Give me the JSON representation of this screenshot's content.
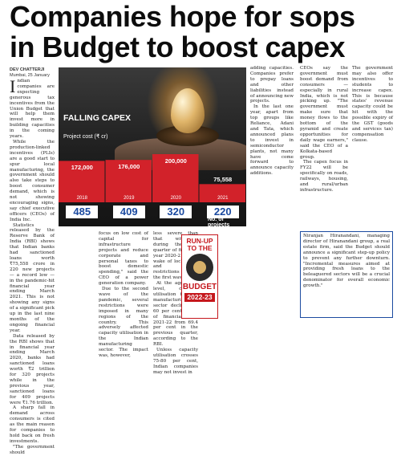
{
  "headline": [
    "Companies hope for sops",
    "in Budget to boost capex"
  ],
  "byline": {
    "author": "DEV CHATTERJI",
    "place": "Mumbai, 25 January"
  },
  "colors": {
    "bar": "#d2222a",
    "count_text": "#1b4aa0",
    "accent": "#c5171c"
  },
  "col1": [
    "Indian companies are expecting generous tax incentives from the Union Budget that will help them invest more in building capacities in the coming years.",
    "While the production-linked incentives (PLIs) are a good start to spur local manufacturing, the government should also take steps to boost consumer demand, which is not showing encouraging signs, say chief executive officers (CEOs) of India Inc.",
    "Statistics released by the Reserve Bank of India (RBI) shows that Indian banks had sanctioned loans worth ₹75,558 crore in 220 new projects — a record low — in the pandemic-hit financial year ending March 2021. This is not showing any signs of a significant pick up in the last nine months of the ongoing financial year.",
    "Data released by the RBI shows that in financial year ending March 2020, banks had sanctioned loans worth ₹2 trillion for 320 projects while in the previous year, sanctioned loans for 409 projects were ₹1.76 trillion.",
    "A sharp fall in demand across consumers is cited as the main reason for companies to hold back on fresh investments.",
    "\"The government should"
  ],
  "col2a": "focus on low cost of capital for infrastructure projects and reduce corporate and personal taxes to boost domestic spending,\" said the CEO of a power generation company.",
  "col2a2": "Due to the second wave of the pandemic, several restrictions were imposed in many regions of the country. This adversely affected capacity utilisation in the Indian manufacturing sector. The impact was, however,",
  "col2b": "less severe than that witnessed during the first quarter of financial year 2020-21 in the wake of lockdowns and other restrictions during the first wave.",
  "col2b2": "At the aggregate level, capacity utilisation for the manufacturing sector declined to 60 per cent in Q1 of financial year 2021-22 from 69.4 per cent in the previous quarter, according to the RBI.",
  "col2b3": "Unless capacity utilisation crosses 75-80 per cent, Indian companies may not invest in",
  "col3": [
    "adding capacities. Companies prefer to prepay loans and other liabilities instead of announcing new projects.",
    "In the last one year, apart from top groups like Reliance, Adani and Tata, which announced plans to invest in semiconductor plants, not many have come forward to announce capacity additions."
  ],
  "col4": [
    "CEOs say the government must boost demand from consumers — especially in rural India, which is not picking up. \"The government must make sure that money flows to the bottom of the pyramid and create opportunities for daily wage earners,\" said the CEO of a Kolkata-based group.",
    "The capex focus in FY22 will be specifically on roads, railways, housing, and rural/urban infrastructure."
  ],
  "col5": "The government may also offer incentives to students to increase capex. This is because states' revenue capacity could be hit with the possible expiry of the GST (goods and services tax) compensation clause.",
  "quote": "Niranjan Hiranandani, managing director of Hiranandani group, a real estate firm, said the Budget should announce a significant step-up policy to prevent any further downturn. \"Incremental measures aimed at providing fresh loans to the beleaguered sectors will be a crucial denominator for overall economic growth.\"",
  "runup": {
    "title": "RUN-UP TO THE",
    "budget": "BUDGET",
    "year": "2022-23"
  },
  "chart_data": {
    "type": "bar",
    "title": "FALLING CAPEX",
    "subtitle": "Project cost (₹ cr)",
    "categories": [
      "2018",
      "2019",
      "2020",
      "2021"
    ],
    "values": [
      172000,
      176000,
      200000,
      75558
    ],
    "value_labels": [
      "172,000",
      "176,000",
      "200,000",
      "75,558"
    ],
    "project_counts": [
      485,
      409,
      320,
      220
    ],
    "count_label": "No. of projects"
  }
}
